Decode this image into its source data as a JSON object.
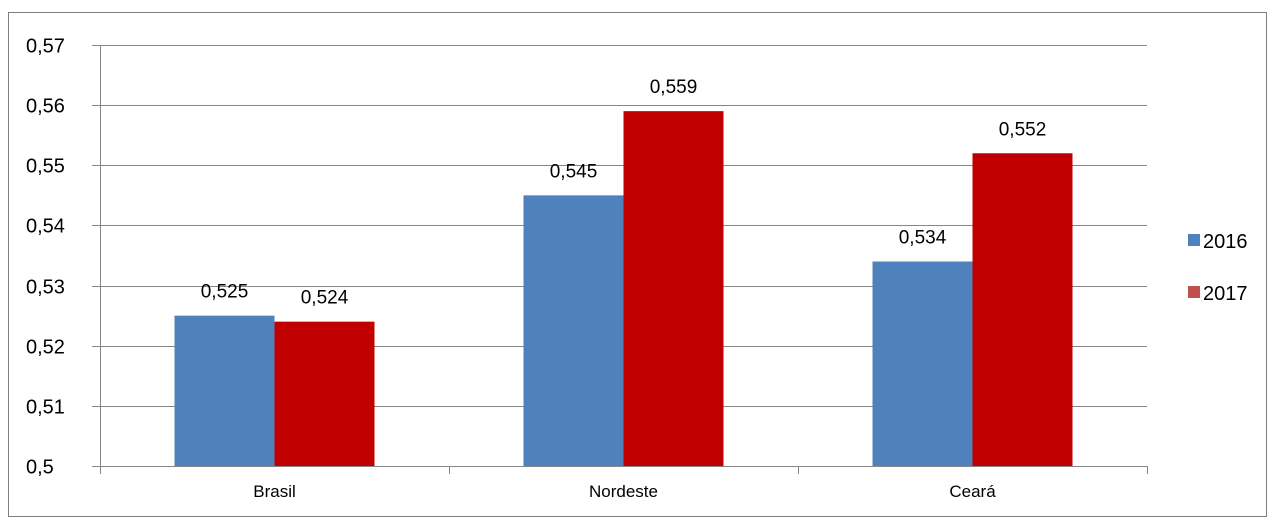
{
  "chart_data": {
    "type": "bar",
    "categories": [
      "Brasil",
      "Nordeste",
      "Ceará"
    ],
    "series": [
      {
        "name": "2016",
        "values": [
          0.525,
          0.545,
          0.534
        ],
        "labels": [
          "0,525",
          "0,545",
          "0,534"
        ],
        "color": "#4f81bd"
      },
      {
        "name": "2017",
        "values": [
          0.524,
          0.559,
          0.552
        ],
        "labels": [
          "0,524",
          "0,559",
          "0,552"
        ],
        "color": "#c00000"
      }
    ],
    "yticks": [
      0.5,
      0.51,
      0.52,
      0.53,
      0.54,
      0.55,
      0.56,
      0.57
    ],
    "ytick_labels": [
      "0,5",
      "0,51",
      "0,52",
      "0,53",
      "0,54",
      "0,55",
      "0,56",
      "0,57"
    ],
    "ylim": [
      0.5,
      0.57
    ],
    "grid": true,
    "legend_position": "right",
    "legend_colors": [
      "#4f81bd",
      "#c0504d"
    ],
    "title": "",
    "xlabel": "",
    "ylabel": ""
  }
}
